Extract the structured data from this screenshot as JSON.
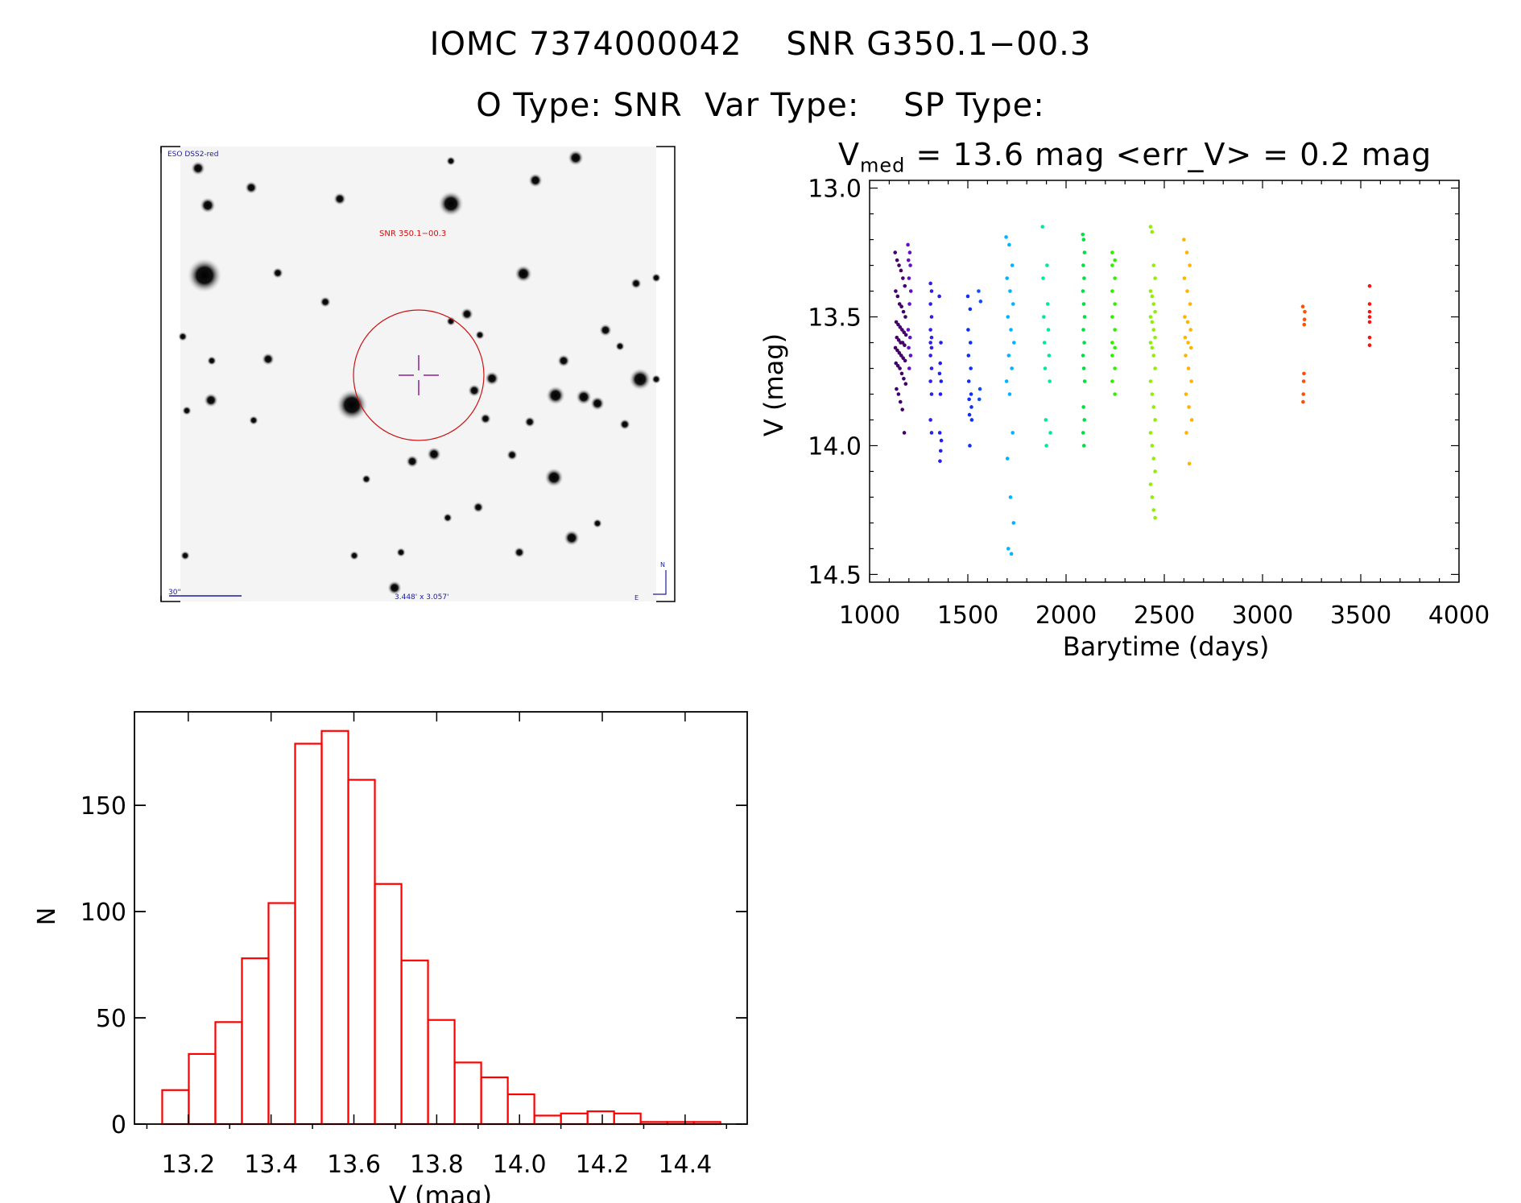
{
  "header": {
    "title_line1": "IOMC 7374000042    SNR G350.1−00.3",
    "title_line2": "O Type: SNR  Var Type:    SP Type:",
    "stats_prefix": "V",
    "stats_sub": "med",
    "stats_rest": " = 13.6 mag <err_V> = 0.2 mag"
  },
  "finder_image": {
    "survey_label": "ESO DSS2-red",
    "target_label": "SNR 350.1−00.3",
    "scale_label": "30\"",
    "fov_label": "3.448' x 3.057'",
    "north_label": "N",
    "east_label": "E",
    "colors": {
      "label": "#1a1aa0",
      "target": "#cc1010",
      "crosshair": "#902090"
    }
  },
  "chart_data": [
    {
      "type": "scatter",
      "title": "",
      "xlabel": "Barytime (days)",
      "ylabel": "V (mag)",
      "xlim": [
        1000,
        4000
      ],
      "ylim": [
        14.5,
        13.0
      ],
      "y_inverted": true,
      "xticks": [
        "1000",
        "1500",
        "2000",
        "2500",
        "3000",
        "3500",
        "4000"
      ],
      "yticks": [
        "13.0",
        "13.5",
        "14.0",
        "14.5"
      ],
      "color_by": "time (rainbow, purple to red)",
      "seasons": [
        {
          "t": [
            1130,
            1185
          ],
          "color": "#420068",
          "v": [
            13.25,
            13.28,
            13.3,
            13.32,
            13.35,
            13.38,
            13.4,
            13.42,
            13.45,
            13.46,
            13.48,
            13.5,
            13.52,
            13.53,
            13.54,
            13.55,
            13.56,
            13.57,
            13.58,
            13.59,
            13.6,
            13.6,
            13.61,
            13.62,
            13.63,
            13.64,
            13.65,
            13.66,
            13.67,
            13.68,
            13.69,
            13.7,
            13.72,
            13.74,
            13.76,
            13.78,
            13.8,
            13.83,
            13.86,
            13.95
          ]
        },
        {
          "t": [
            1195,
            1210
          ],
          "color": "#6410c0",
          "v": [
            13.22,
            13.25,
            13.28,
            13.3,
            13.35,
            13.4,
            13.45,
            13.55,
            13.58,
            13.62,
            13.65,
            13.7
          ]
        },
        {
          "t": [
            1310,
            1320
          ],
          "color": "#3020e0",
          "v": [
            13.37,
            13.4,
            13.45,
            13.5,
            13.55,
            13.58,
            13.6,
            13.62,
            13.65,
            13.7,
            13.75,
            13.8,
            13.9,
            13.95
          ]
        },
        {
          "t": [
            1355,
            1365
          ],
          "color": "#2020f0",
          "v": [
            13.42,
            13.6,
            13.68,
            13.72,
            13.75,
            13.8,
            13.95,
            13.98,
            14.02,
            14.06
          ]
        },
        {
          "t": [
            1500,
            1520
          ],
          "color": "#1030f0",
          "v": [
            13.42,
            13.47,
            13.55,
            13.6,
            13.65,
            13.7,
            13.75,
            13.8,
            13.82,
            13.85,
            13.88,
            13.9,
            14.0
          ]
        },
        {
          "t": [
            1555,
            1565
          ],
          "color": "#1050f0",
          "v": [
            13.4,
            13.44,
            13.78,
            13.82
          ]
        },
        {
          "t": [
            1695,
            1735
          ],
          "color": "#00b4ff",
          "v": [
            13.19,
            13.22,
            13.3,
            13.35,
            13.4,
            13.45,
            13.5,
            13.55,
            13.6,
            13.65,
            13.7,
            13.75,
            13.8,
            13.95,
            14.05,
            14.2,
            14.3,
            14.4,
            14.42
          ]
        },
        {
          "t": [
            1880,
            1920
          ],
          "color": "#00e8a0",
          "v": [
            13.15,
            13.3,
            13.35,
            13.45,
            13.5,
            13.55,
            13.6,
            13.65,
            13.7,
            13.75,
            13.9,
            13.95,
            14.0
          ]
        },
        {
          "t": [
            2085,
            2095
          ],
          "color": "#00e040",
          "v": [
            13.18,
            13.2,
            13.25,
            13.3,
            13.35,
            13.4,
            13.45,
            13.5,
            13.55,
            13.6,
            13.65,
            13.7,
            13.75,
            13.85,
            13.9,
            13.95,
            14.0
          ]
        },
        {
          "t": [
            2235,
            2260
          ],
          "color": "#30f000",
          "v": [
            13.25,
            13.28,
            13.3,
            13.35,
            13.4,
            13.45,
            13.5,
            13.55,
            13.6,
            13.62,
            13.65,
            13.7,
            13.75,
            13.8
          ]
        },
        {
          "t": [
            2430,
            2460
          ],
          "color": "#90f000",
          "v": [
            13.15,
            13.17,
            13.3,
            13.35,
            13.4,
            13.42,
            13.45,
            13.48,
            13.5,
            13.52,
            13.55,
            13.58,
            13.6,
            13.62,
            13.65,
            13.7,
            13.75,
            13.8,
            13.85,
            13.9,
            13.95,
            14.0,
            14.05,
            14.1,
            14.15,
            14.2,
            14.25,
            14.28
          ]
        },
        {
          "t": [
            2600,
            2640
          ],
          "color": "#ffb400",
          "v": [
            13.2,
            13.25,
            13.3,
            13.35,
            13.4,
            13.45,
            13.5,
            13.52,
            13.55,
            13.58,
            13.6,
            13.62,
            13.65,
            13.7,
            13.75,
            13.8,
            13.85,
            13.9,
            13.95,
            14.07
          ]
        },
        {
          "t": [
            3205,
            3215
          ],
          "color": "#ff5000",
          "v": [
            13.46,
            13.48,
            13.51,
            13.53,
            13.72,
            13.75,
            13.8,
            13.83
          ]
        },
        {
          "t": [
            3545,
            3555
          ],
          "color": "#ff1010",
          "v": [
            13.38,
            13.45,
            13.48,
            13.5,
            13.52,
            13.58,
            13.61
          ]
        }
      ]
    },
    {
      "type": "bar",
      "subtype": "histogram",
      "title": "",
      "xlabel": "V (mag)",
      "ylabel": "N",
      "xlim": [
        13.07,
        14.55
      ],
      "ylim": [
        0,
        194
      ],
      "xticks": [
        "13.2",
        "13.4",
        "13.6",
        "13.8",
        "14.0",
        "14.2",
        "14.4"
      ],
      "yticks": [
        "0",
        "50",
        "100",
        "150"
      ],
      "bin_start": 13.137,
      "bin_width": 0.0642,
      "values": [
        16,
        33,
        48,
        78,
        104,
        179,
        185,
        162,
        113,
        77,
        49,
        29,
        22,
        14,
        4,
        5,
        6,
        5,
        1,
        1,
        1
      ],
      "color": "#ff0000"
    }
  ]
}
